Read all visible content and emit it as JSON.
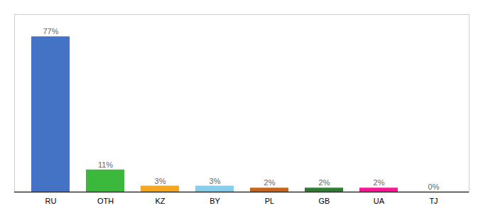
{
  "chart_data": {
    "type": "bar",
    "categories": [
      "RU",
      "OTH",
      "KZ",
      "BY",
      "PL",
      "GB",
      "UA",
      "TJ"
    ],
    "values": [
      77,
      11,
      3,
      3,
      2,
      2,
      2,
      0
    ],
    "value_labels": [
      "77%",
      "11%",
      "3%",
      "3%",
      "2%",
      "2%",
      "2%",
      "0%"
    ],
    "data_labels": true,
    "colors": [
      "#4472c4",
      "#3cb83c",
      "#f5a623",
      "#87ceeb",
      "#c8651a",
      "#2e7d32",
      "#ff1493",
      "#cccccc"
    ],
    "ylim": [
      0,
      88
    ],
    "tick_labels": "x"
  }
}
